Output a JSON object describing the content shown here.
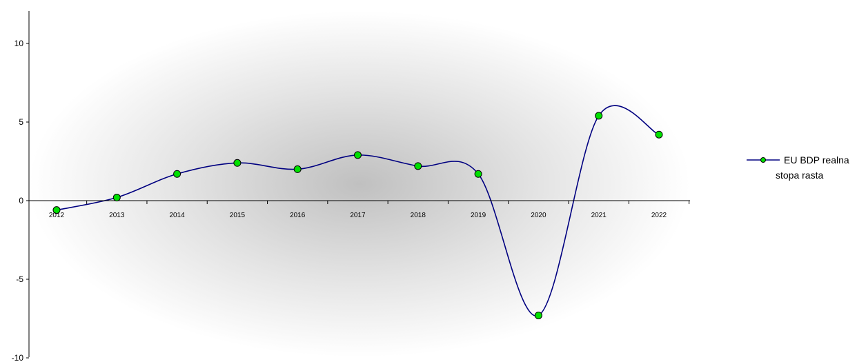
{
  "chart_data": {
    "type": "line",
    "title": "",
    "xlabel": "",
    "ylabel": "",
    "categories": [
      "2012",
      "2013",
      "2014",
      "2015",
      "2016",
      "2017",
      "2018",
      "2019",
      "2020",
      "2021",
      "2022"
    ],
    "series": [
      {
        "name": "EU BDP realna stopa rasta",
        "values": [
          -0.6,
          0.2,
          1.7,
          2.4,
          2.0,
          2.9,
          2.2,
          1.7,
          -7.3,
          5.4,
          4.2
        ]
      }
    ],
    "y_ticks": [
      "10",
      "5",
      "0",
      "-5",
      "-10"
    ],
    "ylim": [
      -10,
      12
    ],
    "grid": false,
    "legend_position": "right",
    "line_color": "#000080",
    "marker_color": "#00e000",
    "background": "radial grey gradient"
  },
  "legend": {
    "line1": "EU BDP realna",
    "line2": "stopa rasta"
  }
}
